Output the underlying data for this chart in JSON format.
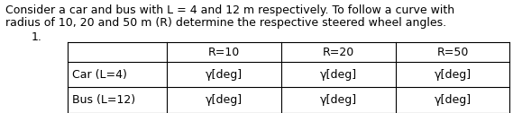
{
  "title_line1": "Consider a car and bus with L = 4 and 12 m respectively. To follow a curve with",
  "title_line2": "radius of 10, 20 and 50 m (R) determine the respective steered wheel angles.",
  "problem_number": "1.",
  "col_headers": [
    "",
    "R=10",
    "R=20",
    "R=50"
  ],
  "row_labels": [
    "Car (L=4)",
    "Bus (L=12)"
  ],
  "cell_value": "γ[deg]",
  "background_color": "#ffffff",
  "text_color": "#000000",
  "font_size": 9.0
}
